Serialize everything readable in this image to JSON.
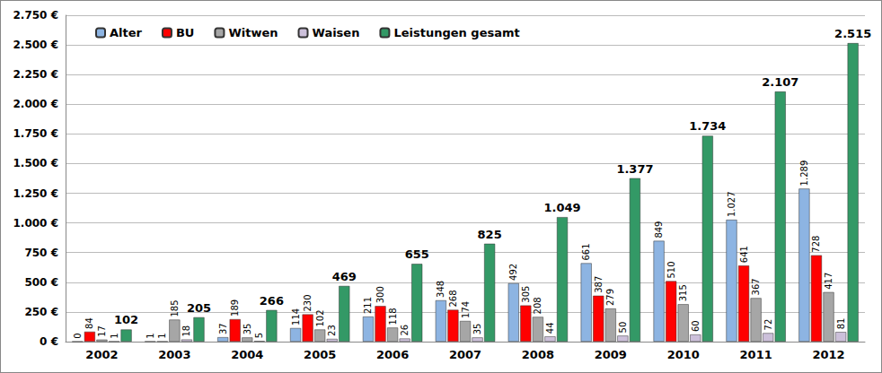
{
  "chart_data": {
    "type": "bar",
    "categories": [
      "2002",
      "2003",
      "2004",
      "2005",
      "2006",
      "2007",
      "2008",
      "2009",
      "2010",
      "2011",
      "2012"
    ],
    "series": [
      {
        "name": "Alter",
        "color": "#8DB4E2",
        "values": [
          0,
          1,
          37,
          114,
          211,
          348,
          492,
          661,
          849,
          1027,
          1289
        ],
        "value_labels": [
          "0",
          "1",
          "37",
          "114",
          "211",
          "348",
          "492",
          "661",
          "849",
          "1.027",
          "1.289"
        ]
      },
      {
        "name": "BU",
        "color": "#FF0000",
        "values": [
          84,
          1,
          189,
          230,
          300,
          268,
          305,
          387,
          510,
          641,
          728
        ]
      },
      {
        "name": "Witwen",
        "color": "#A6A6A6",
        "values": [
          17,
          185,
          35,
          102,
          118,
          174,
          208,
          279,
          315,
          367,
          417
        ]
      },
      {
        "name": "Waisen",
        "color": "#CCC0DA",
        "values": [
          1,
          18,
          5,
          23,
          26,
          35,
          44,
          50,
          60,
          72,
          81
        ]
      },
      {
        "name": "Leistungen gesamt",
        "color": "#339966",
        "values": [
          102,
          205,
          266,
          469,
          655,
          825,
          1049,
          1377,
          1734,
          2107,
          2515
        ],
        "value_labels": [
          "102",
          "205",
          "266",
          "469",
          "655",
          "825",
          "1.049",
          "1.377",
          "1.734",
          "2.107",
          "2.515"
        ]
      }
    ],
    "ylim": [
      0,
      2750
    ],
    "yticks": [
      {
        "value": 0,
        "label": "0 €"
      },
      {
        "value": 250,
        "label": "250 €"
      },
      {
        "value": 500,
        "label": "500 €"
      },
      {
        "value": 750,
        "label": "750 €"
      },
      {
        "value": 1000,
        "label": "1.000 €"
      },
      {
        "value": 1250,
        "label": "1.250 €"
      },
      {
        "value": 1500,
        "label": "1.500 €"
      },
      {
        "value": 1750,
        "label": "1.750 €"
      },
      {
        "value": 2000,
        "label": "2.000 €"
      },
      {
        "value": 2250,
        "label": "2.250 €"
      },
      {
        "value": 2500,
        "label": "2.500 €"
      },
      {
        "value": 2750,
        "label": "2.750 €"
      }
    ],
    "grid": true,
    "legend": "top-left",
    "data_labels": true
  }
}
